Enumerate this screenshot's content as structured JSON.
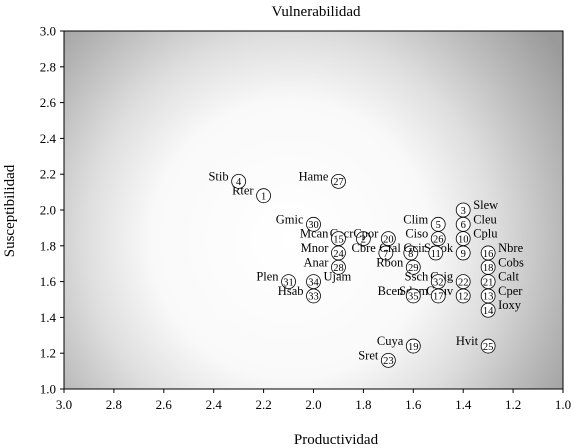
{
  "chart_data": {
    "type": "scatter",
    "title": "Vulnerabilidad",
    "xlabel": "Productividad",
    "ylabel": "Susceptibilidad",
    "xlim": [
      3.0,
      1.0
    ],
    "ylim": [
      1.0,
      3.0
    ],
    "x_reversed": true,
    "x_ticks": [
      "3.0",
      "2.8",
      "2.6",
      "2.4",
      "2.2",
      "2.0",
      "1.8",
      "1.6",
      "1.4",
      "1.2",
      "1.0"
    ],
    "y_ticks": [
      "1.0",
      "1.2",
      "1.4",
      "1.6",
      "1.8",
      "2.0",
      "2.2",
      "2.4",
      "2.6",
      "2.8",
      "3.0"
    ],
    "grid": false,
    "background": "radial gradient: white near x=2.1, y=1.8, darkening to grey toward x=1.0",
    "points": [
      {
        "id": "1",
        "name": "Rter",
        "x": 2.2,
        "y": 2.08
      },
      {
        "id": "2",
        "name": "Cacr",
        "x": 1.8,
        "y": 1.84
      },
      {
        "id": "3",
        "name": "Slew",
        "x": 1.4,
        "y": 2.0
      },
      {
        "id": "4",
        "name": "Stib",
        "x": 2.3,
        "y": 2.16
      },
      {
        "id": "5",
        "name": "Clim",
        "x": 1.5,
        "y": 1.92
      },
      {
        "id": "6",
        "name": "Cleu",
        "x": 1.4,
        "y": 1.92
      },
      {
        "id": "7",
        "name": "Cbre",
        "x": 1.71,
        "y": 1.76
      },
      {
        "id": "8",
        "name": "Cfal",
        "x": 1.61,
        "y": 1.76
      },
      {
        "id": "9",
        "name": "Smok",
        "x": 1.4,
        "y": 1.76
      },
      {
        "id": "10",
        "name": "Cplu",
        "x": 1.4,
        "y": 1.84
      },
      {
        "id": "11",
        "name": "Gcir",
        "x": 1.51,
        "y": 1.76
      },
      {
        "id": "12",
        "name": "Gcuv",
        "x": 1.4,
        "y": 1.52
      },
      {
        "id": "13",
        "name": "Cper",
        "x": 1.3,
        "y": 1.52
      },
      {
        "id": "14",
        "name": "Ioxy",
        "x": 1.3,
        "y": 1.44
      },
      {
        "id": "15",
        "name": "Mcan",
        "x": 1.9,
        "y": 1.84
      },
      {
        "id": "16",
        "name": "Nbre",
        "x": 1.3,
        "y": 1.76
      },
      {
        "id": "17",
        "name": "Sdum",
        "x": 1.5,
        "y": 1.52
      },
      {
        "id": "18",
        "name": "Cobs",
        "x": 1.3,
        "y": 1.68
      },
      {
        "id": "19",
        "name": "Cuya",
        "x": 1.6,
        "y": 1.24
      },
      {
        "id": "20",
        "name": "Cpor",
        "x": 1.7,
        "y": 1.84
      },
      {
        "id": "21",
        "name": "Calt",
        "x": 1.3,
        "y": 1.6
      },
      {
        "id": "22",
        "name": "Csig",
        "x": 1.4,
        "y": 1.6
      },
      {
        "id": "23",
        "name": "Sret",
        "x": 1.7,
        "y": 1.16
      },
      {
        "id": "24",
        "name": "Mnor",
        "x": 1.9,
        "y": 1.76
      },
      {
        "id": "25",
        "name": "Hvit",
        "x": 1.3,
        "y": 1.24
      },
      {
        "id": "26",
        "name": "Ciso",
        "x": 1.5,
        "y": 1.84
      },
      {
        "id": "27",
        "name": "Hame",
        "x": 1.9,
        "y": 2.16
      },
      {
        "id": "28",
        "name": "Anar",
        "x": 1.9,
        "y": 1.68
      },
      {
        "id": "29",
        "name": "Rbon",
        "x": 1.6,
        "y": 1.68
      },
      {
        "id": "30",
        "name": "Gmic",
        "x": 2.0,
        "y": 1.92
      },
      {
        "id": "31",
        "name": "Plen",
        "x": 2.1,
        "y": 1.6
      },
      {
        "id": "32",
        "name": "Ssch",
        "x": 1.5,
        "y": 1.6
      },
      {
        "id": "33",
        "name": "Hsab",
        "x": 2.0,
        "y": 1.52
      },
      {
        "id": "34",
        "name": "Ujam",
        "x": 2.0,
        "y": 1.6
      },
      {
        "id": "35",
        "name": "Bcen",
        "x": 1.6,
        "y": 1.52
      }
    ]
  }
}
